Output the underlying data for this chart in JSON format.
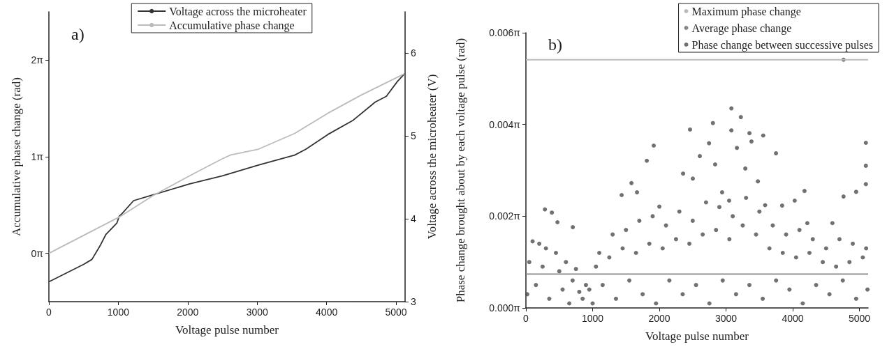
{
  "chart_data": [
    {
      "type": "line",
      "xlabel": "Voltage pulse number",
      "ylabel": "Accumulative phase change (rad)",
      "y2label": "Voltage across the microheater (V)",
      "annotations": [
        "a)"
      ],
      "xlim": [
        0,
        5130
      ],
      "xticks": [
        0,
        1000,
        2000,
        3000,
        4000,
        5000
      ],
      "ylim": [
        -1.5708,
        7.854
      ],
      "yticks": [
        {
          "value": 0,
          "label": "0π"
        },
        {
          "value": 3.1416,
          "label": "1π"
        },
        {
          "value": 6.2832,
          "label": "2π"
        }
      ],
      "y2lim": [
        3,
        6.5
      ],
      "y2ticks": [
        3,
        4,
        5,
        6
      ],
      "grid": false,
      "legend": "top",
      "marker": "none",
      "line_style": "solid",
      "series": [
        {
          "name": "Voltage across the microheater",
          "color": "#333333",
          "axis": "y2",
          "x": [
            0,
            500,
            620,
            740,
            820,
            980,
            1012,
            1060,
            1220,
            1500,
            2020,
            2500,
            3020,
            3540,
            3700,
            4020,
            4380,
            4700,
            4860,
            5020,
            5120
          ],
          "values": [
            3.24,
            3.45,
            3.51,
            3.68,
            3.81,
            3.95,
            4.03,
            4.07,
            4.22,
            4.29,
            4.42,
            4.52,
            4.65,
            4.77,
            4.84,
            5.02,
            5.19,
            5.41,
            5.48,
            5.66,
            5.75
          ]
        },
        {
          "name": "Accumulative phase change",
          "color": "#bbbbbb",
          "x": [
            0,
            1020,
            1500,
            2100,
            2500,
            2620,
            3020,
            3540,
            4020,
            4500,
            5120
          ],
          "values": [
            0,
            1.19,
            1.88,
            2.61,
            3.08,
            3.2,
            3.39,
            3.9,
            4.56,
            5.15,
            5.84
          ]
        }
      ]
    },
    {
      "type": "scatter",
      "xlabel": "Voltage pulse number",
      "ylabel": "Phase change brought about by each voltage pulse (rad)",
      "annotations": [
        "b)"
      ],
      "xlim": [
        0,
        5130
      ],
      "xticks": [
        0,
        1000,
        2000,
        3000,
        4000,
        5000
      ],
      "ylim": [
        0,
        0.0188496
      ],
      "yticks": [
        {
          "value": 0,
          "label": "0.000π"
        },
        {
          "value": 0.0062832,
          "label": "0.002π"
        },
        {
          "value": 0.0125664,
          "label": "0.004π"
        },
        {
          "value": 0.0188496,
          "label": "0.006π"
        }
      ],
      "grid": false,
      "legend": "top right",
      "marker": "circle",
      "series": [
        {
          "name": "Maximum phase change",
          "color": "#bbbbbb",
          "type": "line",
          "marker": "none",
          "x": [
            0,
            5130
          ],
          "values": [
            0.017,
            0.017
          ]
        },
        {
          "name": "Average phase change",
          "color": "#888888",
          "type": "line",
          "marker": "none",
          "x": [
            0,
            5130
          ],
          "values": [
            0.00232,
            0.00232
          ]
        },
        {
          "name": "Phase change between successive pulses",
          "color": "#4d4d4d",
          "x": [
            3080,
            3222,
            3080,
            2460,
            2803,
            2745,
            1916,
            5096,
            3749,
            3557,
            3351,
            3381,
            1812,
            1582,
            1435,
            285,
            389,
            473,
            703,
            5096,
            5096,
            4761,
            4950,
            4176,
            4029,
            3841,
            2356,
            2607,
            2837,
            3163,
            3289,
            3477,
            2941,
            2502,
            2000,
            1665,
            3046,
            3586,
            4218,
            4594,
            4761,
            100,
            200,
            300,
            450,
            600,
            750,
            1100,
            1300,
            1500,
            1700,
            1900,
            2100,
            2300,
            2500,
            2700,
            2900,
            3100,
            3300,
            3500,
            3700,
            3900,
            4100,
            4300,
            4500,
            4700,
            4900,
            5100,
            50,
            250,
            500,
            700,
            900,
            1050,
            1250,
            1450,
            1650,
            1850,
            2050,
            2250,
            2450,
            2650,
            2850,
            3050,
            3250,
            3450,
            3650,
            3850,
            4050,
            4250,
            4450,
            4650,
            4850,
            5050,
            20,
            150,
            350,
            550,
            650,
            800,
            850,
            950,
            1000,
            1150,
            1350,
            1550,
            1750,
            1950,
            2150,
            2350,
            2550,
            2750,
            2950,
            3150,
            3350,
            3550,
            3750,
            3950,
            4150,
            4350,
            4550,
            4750,
            4950,
            5120
          ],
          "values": [
            0.01367,
            0.01307,
            0.01216,
            0.01222,
            0.01266,
            0.01128,
            0.01112,
            0.01131,
            0.01059,
            0.01181,
            0.01197,
            0.0114,
            0.01008,
            0.00855,
            0.00773,
            0.00675,
            0.00653,
            0.00587,
            0.00553,
            0.00848,
            0.00974,
            0.00763,
            0.00795,
            0.00801,
            0.00735,
            0.00701,
            0.0092,
            0.0104,
            0.00983,
            0.01096,
            0.00955,
            0.00867,
            0.00792,
            0.00886,
            0.00694,
            0.00792,
            0.00735,
            0.00704,
            0.00581,
            0.00581,
            0.017,
            0.00456,
            0.0044,
            0.00408,
            0.00377,
            0.00314,
            0.00267,
            0.00377,
            0.00503,
            0.00534,
            0.00597,
            0.00628,
            0.00565,
            0.0066,
            0.00597,
            0.00723,
            0.00691,
            0.00628,
            0.00754,
            0.0066,
            0.00565,
            0.00503,
            0.00534,
            0.00471,
            0.00408,
            0.00471,
            0.0044,
            0.00408,
            0.00314,
            0.00283,
            0.00251,
            0.00188,
            0.00157,
            0.00283,
            0.00346,
            0.00408,
            0.00377,
            0.0044,
            0.00408,
            0.00471,
            0.0044,
            0.00503,
            0.00534,
            0.00471,
            0.00565,
            0.00503,
            0.00408,
            0.00377,
            0.00346,
            0.00377,
            0.00314,
            0.00283,
            0.00314,
            0.00346,
            0.00094,
            0.00157,
            0.00063,
            0.00126,
            0.00031,
            0.0011,
            0.00063,
            0.00126,
            0.00031,
            0.00157,
            0.00063,
            0.00188,
            0.00094,
            0.00031,
            0.00188,
            0.00094,
            0.00157,
            0.00031,
            0.00188,
            0.00094,
            0.00157,
            0.00063,
            0.00188,
            0.00126,
            0.00031,
            0.00157,
            0.00094,
            0.00188,
            0.00063,
            0.00126
          ]
        }
      ]
    }
  ]
}
